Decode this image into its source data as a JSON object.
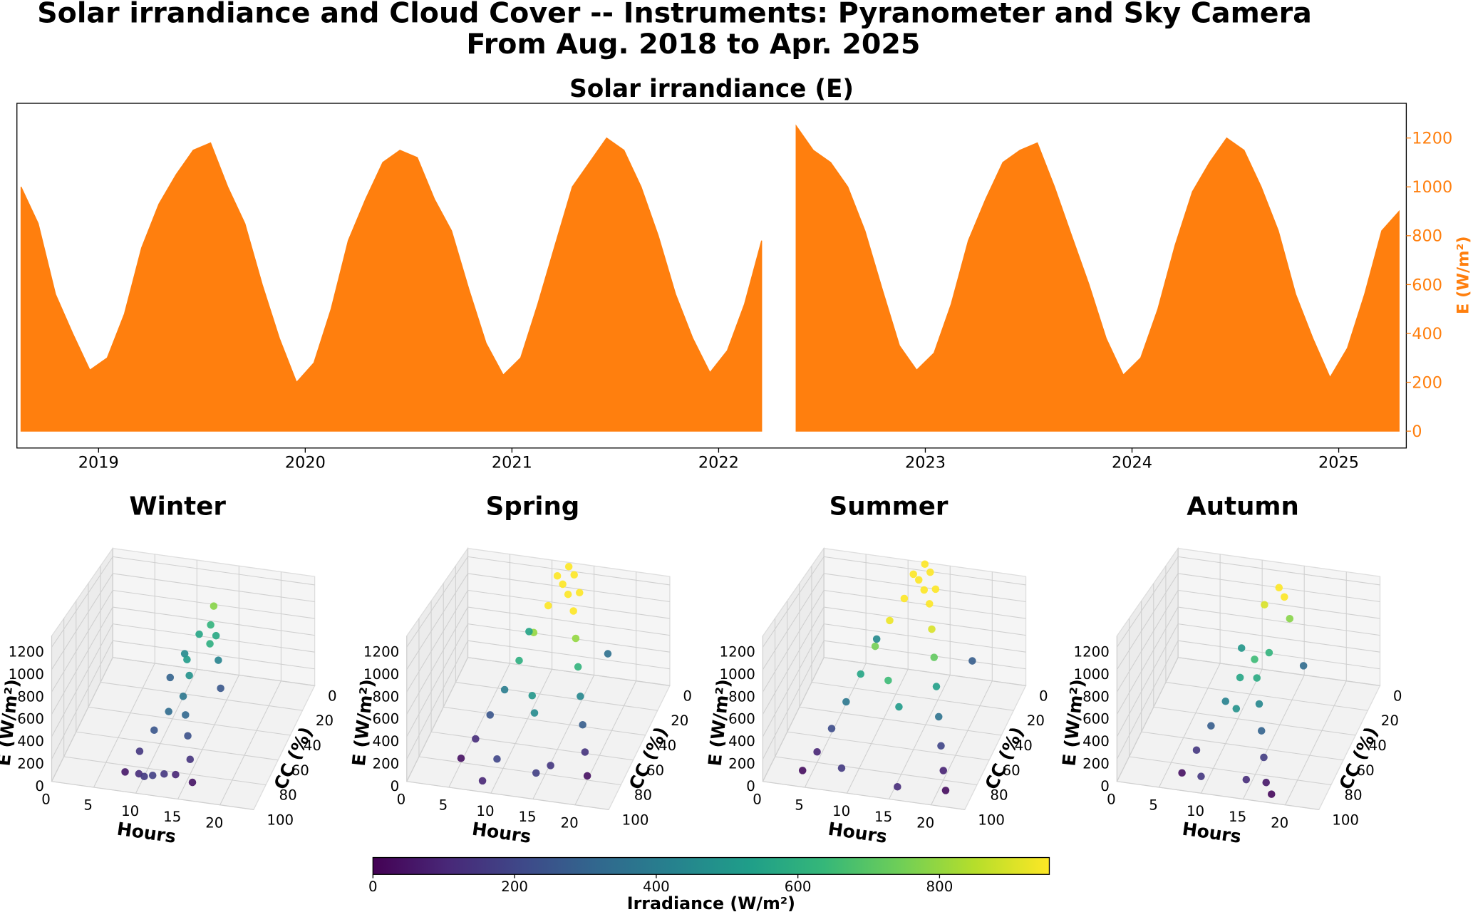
{
  "title": [
    "Solar irrandiance and Cloud Cover --  Instruments: Pyranometer and Sky Camera",
    "From Aug. 2018 to Apr. 2025"
  ],
  "chart_data": [
    {
      "type": "area",
      "title": "Solar irrandiance (E)",
      "ylabel": "E (W/m²)",
      "color": "#ff7f0e",
      "x": [
        2018.625,
        2018.708,
        2018.792,
        2018.875,
        2018.958,
        2019.042,
        2019.125,
        2019.208,
        2019.292,
        2019.375,
        2019.458,
        2019.542,
        2019.625,
        2019.708,
        2019.792,
        2019.875,
        2019.958,
        2020.042,
        2020.125,
        2020.208,
        2020.292,
        2020.375,
        2020.458,
        2020.542,
        2020.625,
        2020.708,
        2020.792,
        2020.875,
        2020.958,
        2021.042,
        2021.125,
        2021.208,
        2021.292,
        2021.375,
        2021.458,
        2021.542,
        2021.625,
        2021.708,
        2021.792,
        2021.875,
        2021.958,
        2022.042,
        2022.125,
        2022.208,
        2022.292,
        2022.375,
        2022.458,
        2022.542,
        2022.625,
        2022.708,
        2022.792,
        2022.875,
        2022.958,
        2023.042,
        2023.125,
        2023.208,
        2023.292,
        2023.375,
        2023.458,
        2023.542,
        2023.625,
        2023.708,
        2023.792,
        2023.875,
        2023.958,
        2024.042,
        2024.125,
        2024.208,
        2024.292,
        2024.375,
        2024.458,
        2024.542,
        2024.625,
        2024.708,
        2024.792,
        2024.875,
        2024.958,
        2025.042,
        2025.125,
        2025.208,
        2025.292
      ],
      "values": [
        1000,
        850,
        560,
        400,
        250,
        300,
        480,
        750,
        930,
        1050,
        1150,
        1180,
        1000,
        850,
        600,
        380,
        200,
        280,
        500,
        780,
        950,
        1100,
        1150,
        1120,
        950,
        820,
        580,
        360,
        230,
        300,
        520,
        760,
        1000,
        1100,
        1200,
        1150,
        1000,
        800,
        560,
        380,
        240,
        330,
        520,
        780,
        null,
        1250,
        1150,
        1100,
        1000,
        820,
        580,
        350,
        250,
        320,
        520,
        780,
        950,
        1100,
        1150,
        1180,
        1000,
        800,
        600,
        380,
        230,
        300,
        500,
        760,
        980,
        1100,
        1200,
        1150,
        1000,
        820,
        560,
        380,
        220,
        340,
        560,
        820,
        900
      ],
      "xlim": [
        2018.605,
        2025.327
      ],
      "xticks": [
        2019,
        2020,
        2021,
        2022,
        2023,
        2024,
        2025
      ],
      "ylim": [
        -69,
        1342
      ],
      "yticks": [
        0,
        200,
        400,
        600,
        800,
        1000,
        1200
      ]
    },
    {
      "type": "scatter3d",
      "title": "Winter",
      "xlabel": "Hours",
      "ylabel": "CC (%)",
      "zlabel": "E (W/m²)",
      "x": [
        8,
        9,
        10,
        11,
        12,
        13,
        14,
        15,
        16,
        9,
        10,
        11,
        12,
        13,
        14,
        15,
        10,
        11,
        12,
        13,
        14,
        12,
        11,
        13,
        12
      ],
      "y": [
        90,
        80,
        70,
        60,
        50,
        60,
        70,
        80,
        90,
        30,
        20,
        10,
        5,
        10,
        20,
        30,
        95,
        100,
        100,
        95,
        90,
        40,
        30,
        20,
        0
      ],
      "z": [
        60,
        150,
        250,
        330,
        380,
        320,
        240,
        140,
        50,
        300,
        450,
        560,
        620,
        570,
        430,
        260,
        120,
        160,
        180,
        150,
        100,
        480,
        520,
        600,
        780
      ],
      "xlim": [
        0,
        24
      ],
      "xticks": [
        0,
        5,
        10,
        15,
        20
      ],
      "ylim": [
        0,
        100
      ],
      "yticks": [
        0,
        20,
        40,
        60,
        80,
        100
      ],
      "zlim": [
        0,
        1300
      ],
      "zticks": [
        0,
        200,
        400,
        600,
        800,
        1000,
        1200
      ]
    },
    {
      "type": "scatter3d",
      "title": "Spring",
      "xlabel": "Hours",
      "ylabel": "CC (%)",
      "zlabel": "E (W/m²)",
      "x": [
        5,
        6,
        7,
        8,
        9,
        10,
        11,
        12,
        13,
        14,
        15,
        16,
        17,
        18,
        19,
        20,
        12,
        13,
        11,
        14,
        10,
        15,
        9,
        16,
        12,
        13,
        8,
        17
      ],
      "y": [
        80,
        70,
        60,
        50,
        40,
        30,
        20,
        10,
        15,
        20,
        30,
        40,
        50,
        60,
        70,
        80,
        0,
        5,
        5,
        10,
        90,
        95,
        100,
        85,
        60,
        70,
        10,
        5
      ],
      "z": [
        40,
        120,
        250,
        400,
        600,
        800,
        1000,
        1150,
        1100,
        980,
        800,
        620,
        440,
        280,
        140,
        40,
        1250,
        1220,
        1180,
        1080,
        200,
        180,
        100,
        150,
        500,
        450,
        550,
        350
      ],
      "xlim": [
        0,
        24
      ],
      "xticks": [
        0,
        5,
        10,
        15,
        20
      ],
      "ylim": [
        0,
        100
      ],
      "yticks": [
        0,
        20,
        40,
        60,
        80,
        100
      ],
      "zlim": [
        0,
        1300
      ],
      "zticks": [
        0,
        200,
        400,
        600,
        800,
        1000,
        1200
      ]
    },
    {
      "type": "scatter3d",
      "title": "Summer",
      "xlabel": "Hours",
      "ylabel": "CC (%)",
      "zlabel": "E (W/m²)",
      "x": [
        4,
        5,
        6,
        7,
        8,
        9,
        10,
        11,
        12,
        13,
        14,
        15,
        16,
        17,
        18,
        19,
        20,
        21,
        12,
        13,
        11,
        14,
        9,
        16,
        12,
        14,
        7,
        18
      ],
      "y": [
        90,
        80,
        70,
        60,
        50,
        40,
        30,
        20,
        10,
        15,
        20,
        30,
        40,
        50,
        60,
        70,
        80,
        90,
        0,
        5,
        5,
        10,
        95,
        100,
        60,
        70,
        10,
        5
      ],
      "z": [
        30,
        100,
        220,
        380,
        560,
        750,
        930,
        1080,
        1200,
        1150,
        1060,
        900,
        720,
        540,
        360,
        200,
        90,
        30,
        1280,
        1250,
        1200,
        1120,
        160,
        120,
        650,
        520,
        450,
        280
      ],
      "xlim": [
        0,
        24
      ],
      "xticks": [
        0,
        5,
        10,
        15,
        20
      ],
      "ylim": [
        0,
        100
      ],
      "yticks": [
        0,
        20,
        40,
        60,
        80,
        100
      ],
      "zlim": [
        0,
        1300
      ],
      "zticks": [
        0,
        200,
        400,
        600,
        800,
        1000,
        1200
      ]
    },
    {
      "type": "scatter3d",
      "title": "Autumn",
      "xlabel": "Hours",
      "ylabel": "CC (%)",
      "zlabel": "E (W/m²)",
      "x": [
        7,
        8,
        9,
        10,
        11,
        12,
        13,
        14,
        15,
        16,
        17,
        18,
        12,
        13,
        11,
        14,
        10,
        15,
        12,
        9,
        16,
        13
      ],
      "y": [
        90,
        80,
        70,
        60,
        50,
        40,
        50,
        60,
        70,
        80,
        90,
        95,
        0,
        5,
        10,
        10,
        100,
        95,
        70,
        20,
        15,
        30
      ],
      "z": [
        40,
        150,
        280,
        420,
        560,
        650,
        580,
        440,
        300,
        170,
        60,
        20,
        1000,
        960,
        900,
        780,
        150,
        120,
        480,
        500,
        330,
        620
      ],
      "xlim": [
        0,
        24
      ],
      "xticks": [
        0,
        5,
        10,
        15,
        20
      ],
      "ylim": [
        0,
        100
      ],
      "yticks": [
        0,
        20,
        40,
        60,
        80,
        100
      ],
      "zlim": [
        0,
        1300
      ],
      "zticks": [
        0,
        200,
        400,
        600,
        800,
        1000,
        1200
      ]
    },
    {
      "type": "colorbar",
      "label": "Irradiance (W/m²)",
      "lim": [
        0,
        955
      ],
      "ticks": [
        0,
        200,
        400,
        600,
        800
      ]
    }
  ]
}
